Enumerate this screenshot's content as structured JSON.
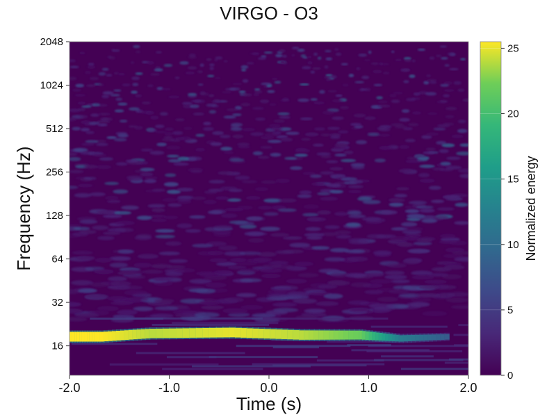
{
  "chart_data": {
    "type": "heatmap",
    "title": "VIRGO - O3",
    "xlabel": "Time (s)",
    "ylabel": "Frequency (Hz)",
    "xlim": [
      -2.0,
      2.0
    ],
    "ylim": [
      10,
      2048
    ],
    "yscale": "log2",
    "x_ticks": [
      -2.0,
      -1.0,
      0.0,
      1.0,
      2.0
    ],
    "x_tick_labels": [
      "-2.0",
      "-1.0",
      "0.0",
      "1.0",
      "2.0"
    ],
    "y_ticks": [
      16,
      32,
      64,
      128,
      256,
      512,
      1024,
      2048
    ],
    "y_tick_labels": [
      "16",
      "32",
      "64",
      "128",
      "256",
      "512",
      "1024",
      "2048"
    ],
    "colormap": "viridis",
    "colorbar": {
      "label": "Normalized energy",
      "range": [
        0,
        25.5
      ],
      "ticks": [
        0,
        5,
        10,
        15,
        20,
        25
      ],
      "tick_labels": [
        "0",
        "5",
        "10",
        "15",
        "20",
        "25"
      ]
    },
    "features": [
      {
        "t": -2.0,
        "f": 18.5,
        "energy": 25.5
      },
      {
        "t": -1.7,
        "f": 18.5,
        "energy": 25.5
      },
      {
        "t": -1.2,
        "f": 19.5,
        "energy": 24
      },
      {
        "t": -0.4,
        "f": 19.8,
        "energy": 25
      },
      {
        "t": 0.3,
        "f": 19.0,
        "energy": 24
      },
      {
        "t": 0.9,
        "f": 19.0,
        "energy": 22
      },
      {
        "t": 1.3,
        "f": 18.0,
        "energy": 12
      },
      {
        "t": 1.8,
        "f": 18.5,
        "energy": 8
      }
    ]
  }
}
